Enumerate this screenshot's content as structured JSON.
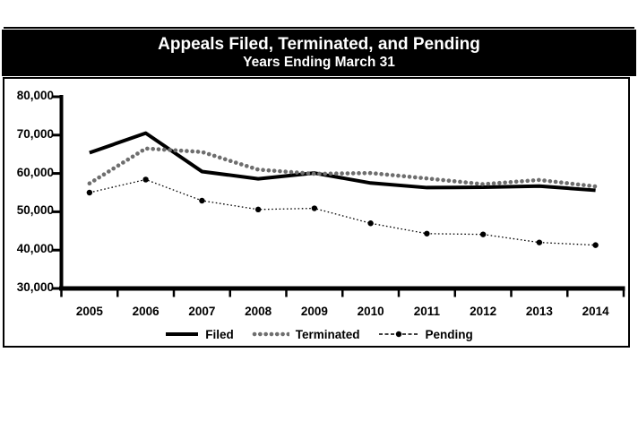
{
  "header": {
    "title": "Appeals Filed, Terminated, and Pending",
    "subtitle": "Years Ending March 31",
    "band_color": "#000000",
    "text_color": "#ffffff"
  },
  "chart_data": {
    "type": "line",
    "title": "Appeals Filed, Terminated, and Pending",
    "subtitle": "Years Ending March 31",
    "categories": [
      "2005",
      "2006",
      "2007",
      "2008",
      "2009",
      "2010",
      "2011",
      "2012",
      "2013",
      "2014"
    ],
    "series": [
      {
        "name": "Filed",
        "color": "#000000",
        "dash": "solid",
        "line_width": 4,
        "markers": false,
        "values": [
          65400,
          70500,
          60500,
          58600,
          60100,
          57500,
          56300,
          56400,
          56700,
          55600
        ]
      },
      {
        "name": "Terminated",
        "color": "#6e6e6e",
        "dash": "dot",
        "line_width": 4.6,
        "markers": false,
        "values": [
          57400,
          66500,
          65600,
          61000,
          59900,
          60100,
          58700,
          57200,
          58300,
          56600
        ]
      },
      {
        "name": "Pending",
        "color": "#000000",
        "dash": "fine-dot",
        "line_width": 1.3,
        "markers": true,
        "values": [
          55000,
          58400,
          52900,
          50600,
          50900,
          47000,
          44300,
          44100,
          42000,
          41300
        ]
      }
    ],
    "ylim": [
      30000,
      80000
    ],
    "yticks": [
      30000,
      40000,
      50000,
      60000,
      70000,
      80000
    ],
    "ytick_format": "comma",
    "grid": false,
    "legend_position": "bottom-center",
    "axis_color": "#000000"
  }
}
